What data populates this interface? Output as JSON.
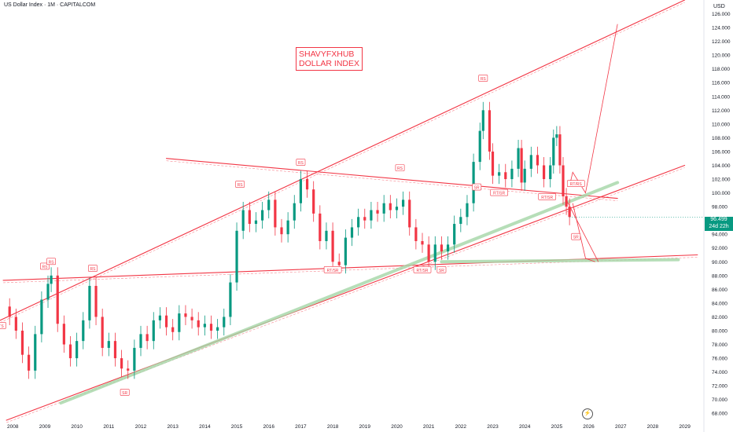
{
  "header": {
    "title": "US Dollar Index · 1M · CAPITALCOM",
    "currency": "USD"
  },
  "annotation": {
    "line1": "SHAVYFXHUB",
    "line2": "DOLLAR INDEX"
  },
  "price_tag": {
    "price": "96.499",
    "countdown": "24d 22h"
  },
  "chart_data": {
    "type": "candlestick",
    "title": "US Dollar Index · 1M · CAPITALCOM",
    "x_ticks": [
      "2008",
      "2009",
      "2010",
      "2011",
      "2012",
      "2013",
      "2014",
      "2015",
      "2016",
      "2017",
      "2018",
      "2019",
      "2020",
      "2021",
      "2022",
      "2023",
      "2024",
      "2025",
      "2026",
      "2027",
      "2028",
      "2029"
    ],
    "y_ticks": [
      "68.000",
      "70.000",
      "72.000",
      "74.000",
      "76.000",
      "78.000",
      "80.000",
      "82.000",
      "84.000",
      "86.000",
      "88.000",
      "90.000",
      "92.000",
      "94.000",
      "96.000",
      "98.000",
      "100.000",
      "102.000",
      "104.000",
      "106.000",
      "108.000",
      "110.000",
      "112.000",
      "114.000",
      "116.000",
      "118.000",
      "120.000",
      "122.000",
      "124.000",
      "126.000"
    ],
    "xlim": [
      2007.6,
      2029.6
    ],
    "ylim": [
      67,
      128
    ],
    "last_price": 96.499,
    "series_close": [
      [
        2007.7,
        83.5
      ],
      [
        2007.9,
        82.0
      ],
      [
        2008.1,
        80.0
      ],
      [
        2008.3,
        76.5
      ],
      [
        2008.5,
        74.2
      ],
      [
        2008.7,
        79.5
      ],
      [
        2008.9,
        84.5
      ],
      [
        2009.1,
        86.8
      ],
      [
        2009.2,
        88.0
      ],
      [
        2009.4,
        81.0
      ],
      [
        2009.6,
        78.0
      ],
      [
        2009.8,
        76.0
      ],
      [
        2010.0,
        78.5
      ],
      [
        2010.2,
        81.5
      ],
      [
        2010.4,
        86.5
      ],
      [
        2010.6,
        82.0
      ],
      [
        2010.8,
        77.5
      ],
      [
        2011.0,
        78.5
      ],
      [
        2011.2,
        76.0
      ],
      [
        2011.4,
        74.5
      ],
      [
        2011.6,
        74.2
      ],
      [
        2011.8,
        77.5
      ],
      [
        2012.0,
        79.5
      ],
      [
        2012.2,
        78.5
      ],
      [
        2012.4,
        81.5
      ],
      [
        2012.6,
        82.2
      ],
      [
        2012.8,
        80.5
      ],
      [
        2013.0,
        79.8
      ],
      [
        2013.2,
        82.5
      ],
      [
        2013.4,
        82.0
      ],
      [
        2013.6,
        81.5
      ],
      [
        2013.8,
        80.5
      ],
      [
        2014.0,
        81.0
      ],
      [
        2014.2,
        80.0
      ],
      [
        2014.4,
        80.5
      ],
      [
        2014.6,
        82.0
      ],
      [
        2014.8,
        87.0
      ],
      [
        2015.0,
        94.5
      ],
      [
        2015.2,
        97.5
      ],
      [
        2015.4,
        95.5
      ],
      [
        2015.6,
        96.0
      ],
      [
        2015.8,
        97.5
      ],
      [
        2016.0,
        99.0
      ],
      [
        2016.2,
        95.0
      ],
      [
        2016.4,
        94.0
      ],
      [
        2016.6,
        96.0
      ],
      [
        2016.8,
        98.5
      ],
      [
        2017.0,
        102.0
      ],
      [
        2017.2,
        100.5
      ],
      [
        2017.4,
        97.0
      ],
      [
        2017.6,
        93.0
      ],
      [
        2017.8,
        94.5
      ],
      [
        2018.0,
        90.0
      ],
      [
        2018.2,
        89.5
      ],
      [
        2018.4,
        93.5
      ],
      [
        2018.6,
        95.0
      ],
      [
        2018.8,
        96.5
      ],
      [
        2019.0,
        96.0
      ],
      [
        2019.2,
        97.5
      ],
      [
        2019.4,
        97.0
      ],
      [
        2019.6,
        98.5
      ],
      [
        2019.8,
        97.5
      ],
      [
        2020.0,
        98.0
      ],
      [
        2020.2,
        99.0
      ],
      [
        2020.4,
        95.0
      ],
      [
        2020.6,
        93.0
      ],
      [
        2020.8,
        92.5
      ],
      [
        2021.0,
        90.0
      ],
      [
        2021.2,
        92.5
      ],
      [
        2021.4,
        91.5
      ],
      [
        2021.6,
        92.5
      ],
      [
        2021.8,
        95.5
      ],
      [
        2022.0,
        96.5
      ],
      [
        2022.2,
        98.5
      ],
      [
        2022.4,
        104.5
      ],
      [
        2022.6,
        109.0
      ],
      [
        2022.7,
        112.0
      ],
      [
        2022.9,
        106.0
      ],
      [
        2023.0,
        102.5
      ],
      [
        2023.2,
        103.0
      ],
      [
        2023.4,
        102.0
      ],
      [
        2023.6,
        103.5
      ],
      [
        2023.8,
        106.5
      ],
      [
        2023.9,
        101.5
      ],
      [
        2024.0,
        103.5
      ],
      [
        2024.2,
        105.5
      ],
      [
        2024.4,
        104.0
      ],
      [
        2024.6,
        102.0
      ],
      [
        2024.8,
        104.0
      ],
      [
        2024.9,
        108.0
      ],
      [
        2025.0,
        108.5
      ],
      [
        2025.1,
        104.0
      ],
      [
        2025.2,
        99.5
      ],
      [
        2025.3,
        98.0
      ],
      [
        2025.4,
        96.5
      ]
    ],
    "trendlines": [
      {
        "color": "#f23645",
        "points": [
          [
            2007.6,
            81.5
          ],
          [
            2029.0,
            128.0
          ]
        ]
      },
      {
        "color": "#f23645",
        "points": [
          [
            2007.8,
            67.0
          ],
          [
            2029.0,
            104.0
          ]
        ]
      },
      {
        "color": "#f23645",
        "points": [
          [
            2012.8,
            105.0
          ],
          [
            2026.9,
            99.2
          ]
        ]
      },
      {
        "color": "#f23645",
        "points": [
          [
            2007.7,
            87.3
          ],
          [
            2029.4,
            91.0
          ]
        ]
      },
      {
        "color": "#a5d6a7",
        "points": [
          [
            2009.5,
            69.5
          ],
          [
            2026.9,
            101.5
          ]
        ]
      },
      {
        "color": "#a5d6a7",
        "points": [
          [
            2021.4,
            90.0
          ],
          [
            2028.8,
            90.3
          ]
        ]
      }
    ],
    "projections": [
      {
        "color": "#f23645",
        "points": [
          [
            2025.4,
            101.0
          ],
          [
            2025.5,
            103.0
          ],
          [
            2025.9,
            100.0
          ],
          [
            2026.9,
            124.5
          ]
        ]
      },
      {
        "color": "#f23645",
        "points": [
          [
            2025.5,
            98.5
          ],
          [
            2025.9,
            90.5
          ],
          [
            2026.2,
            90.0
          ]
        ]
      },
      {
        "color": "#f23645",
        "points": [
          [
            2025.3,
            99.0
          ],
          [
            2026.3,
            90.0
          ]
        ]
      }
    ],
    "labels": [
      {
        "text": "RS",
        "x": 2022.7,
        "y": 116.6
      },
      {
        "text": "RS",
        "x": 2017.0,
        "y": 104.4
      },
      {
        "text": "RS",
        "x": 2020.1,
        "y": 103.6
      },
      {
        "text": "RS",
        "x": 2015.1,
        "y": 101.2
      },
      {
        "text": "RS",
        "x": 2009.0,
        "y": 89.3
      },
      {
        "text": "RS",
        "x": 2009.2,
        "y": 90.0
      },
      {
        "text": "RS",
        "x": 2010.5,
        "y": 89.0
      },
      {
        "text": "ATS",
        "x": 2007.6,
        "y": 80.7
      },
      {
        "text": "SR",
        "x": 2022.5,
        "y": 100.8
      },
      {
        "text": "RT/SR",
        "x": 2023.2,
        "y": 100.0
      },
      {
        "text": "RT/SR",
        "x": 2024.7,
        "y": 99.4
      },
      {
        "text": "RT/RS",
        "x": 2025.6,
        "y": 101.3
      },
      {
        "text": "SR",
        "x": 2025.6,
        "y": 93.6
      },
      {
        "text": "RT/SR",
        "x": 2018.0,
        "y": 88.8
      },
      {
        "text": "RT/SR",
        "x": 2020.8,
        "y": 88.8
      },
      {
        "text": "SR",
        "x": 2021.4,
        "y": 88.8
      },
      {
        "text": "SR",
        "x": 2011.5,
        "y": 71.0
      }
    ]
  }
}
